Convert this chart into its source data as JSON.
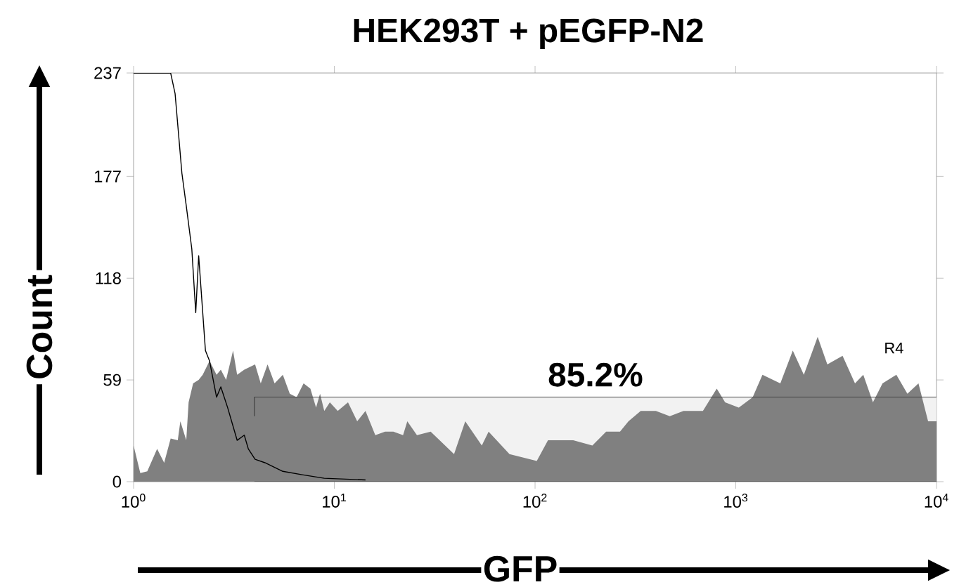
{
  "chart_data": {
    "type": "area",
    "title": "HEK293T + pEGFP-N2",
    "xlabel": "GFP",
    "ylabel": "Count",
    "log": "x",
    "grid": false,
    "xlim": [
      1,
      10000
    ],
    "ylim": [
      0,
      237
    ],
    "xticks": [
      {
        "value": 1,
        "label": "10$^{0}$"
      },
      {
        "value": 10,
        "label": "10$^{1}$"
      },
      {
        "value": 100,
        "label": "10$^{2}$"
      },
      {
        "value": 1000,
        "label": "10$^{3}$"
      },
      {
        "value": 10000,
        "label": "10$^{4}$"
      }
    ],
    "yticks": [
      0,
      59,
      118,
      177,
      237
    ],
    "bands": [
      {
        "axis": "x",
        "from": 4.0,
        "to": 10000,
        "label": "R4"
      }
    ],
    "annotations": [
      "85.2%"
    ],
    "series": [
      {
        "color": "#808080",
        "x": [
          1.0,
          1.08,
          1.17,
          1.31,
          1.42,
          1.53,
          1.66,
          1.71,
          1.83,
          1.88,
          1.98,
          2.11,
          2.21,
          2.39,
          2.59,
          2.72,
          2.89,
          3.13,
          3.28,
          3.56,
          4.03,
          4.3,
          4.65,
          5.04,
          5.54,
          6.0,
          6.49,
          7.03,
          7.6,
          8.11,
          8.49,
          8.91,
          9.5,
          10.4,
          11.7,
          13.0,
          14.3,
          16.0,
          17.9,
          19.7,
          22.0,
          23.1,
          25.8,
          30.2,
          39.5,
          44.9,
          54.3,
          58.7,
          74.6,
          102,
          116,
          155,
          193,
          226,
          265,
          292,
          336,
          400,
          469,
          549,
          686,
          804,
          885,
          1035,
          1214,
          1358,
          1667,
          1923,
          2183,
          2558,
          2858,
          3404,
          3926,
          4317,
          4822,
          5383,
          6310,
          7161,
          8130,
          9080,
          10000
        ],
        "values": [
          21,
          5,
          6,
          19,
          11,
          25,
          24,
          35,
          24,
          46,
          57,
          59,
          62,
          70,
          62,
          65,
          59,
          76,
          62,
          65,
          68,
          57,
          68,
          57,
          62,
          51,
          49,
          57,
          54,
          43,
          51,
          41,
          46,
          41,
          46,
          35,
          41,
          27,
          29,
          29,
          27,
          35,
          27,
          29,
          16,
          35,
          21,
          29,
          16,
          12,
          24,
          24,
          21,
          29,
          29,
          35,
          41,
          41,
          38,
          41,
          41,
          54,
          46,
          43,
          49,
          62,
          57,
          76,
          62,
          84,
          68,
          73,
          57,
          62,
          46,
          57,
          62,
          51,
          57,
          35,
          35
        ]
      },
      {
        "type": "line",
        "color": "#000000",
        "x": [
          1.0,
          1.53,
          1.61,
          1.74,
          1.83,
          1.95,
          2.04,
          2.11,
          2.28,
          2.39,
          2.59,
          2.72,
          2.94,
          3.28,
          3.56,
          3.73,
          4.03,
          4.51,
          5.54,
          6.92,
          8.91,
          14.3
        ],
        "values": [
          237,
          237,
          225,
          179,
          160,
          135,
          98,
          131,
          76,
          70,
          49,
          55,
          43,
          24,
          27,
          19,
          13,
          11,
          6,
          4,
          2,
          1
        ]
      }
    ]
  }
}
